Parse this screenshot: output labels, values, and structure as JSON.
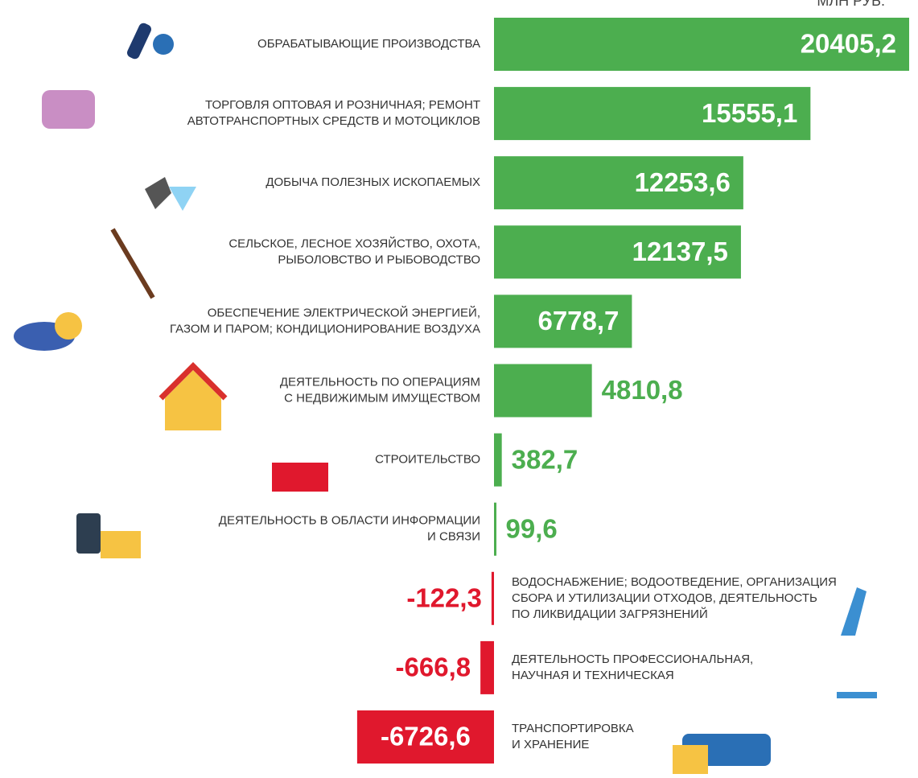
{
  "chart_data": {
    "type": "bar",
    "orientation": "horizontal",
    "unit": "МЛН РУБ.",
    "categories": [
      [
        "ОБРАБАТЫВАЮЩИЕ ПРОИЗВОДСТВА"
      ],
      [
        "ТОРГОВЛЯ ОПТОВАЯ И РОЗНИЧНАЯ; РЕМОНТ",
        "АВТОТРАНСПОРТНЫХ СРЕДСТВ И МОТОЦИКЛОВ"
      ],
      [
        "ДОБЫЧА ПОЛЕЗНЫХ ИСКОПАЕМЫХ"
      ],
      [
        "СЕЛЬСКОЕ, ЛЕСНОЕ ХОЗЯЙСТВО, ОХОТА,",
        "РЫБОЛОВСТВО И РЫБОВОДСТВО"
      ],
      [
        "ОБЕСПЕЧЕНИЕ ЭЛЕКТРИЧЕСКОЙ ЭНЕРГИЕЙ,",
        "ГАЗОМ И ПАРОМ; КОНДИЦИОНИРОВАНИЕ ВОЗДУХА"
      ],
      [
        "ДЕЯТЕЛЬНОСТЬ ПО ОПЕРАЦИЯМ",
        "С НЕДВИЖИМЫМ ИМУЩЕСТВОМ"
      ],
      [
        "СТРОИТЕЛЬСТВО"
      ],
      [
        "ДЕЯТЕЛЬНОСТЬ В ОБЛАСТИ ИНФОРМАЦИИ",
        "И СВЯЗИ"
      ],
      [
        "ВОДОСНАБЖЕНИЕ; ВОДООТВЕДЕНИЕ, ОРГАНИЗАЦИЯ",
        "СБОРА И УТИЛИЗАЦИИ ОТХОДОВ, ДЕЯТЕЛЬНОСТЬ",
        "ПО ЛИКВИДАЦИИ ЗАГРЯЗНЕНИЙ"
      ],
      [
        "ДЕЯТЕЛЬНОСТЬ ПРОФЕССИОНАЛЬНАЯ,",
        "НАУЧНАЯ И ТЕХНИЧЕСКАЯ"
      ],
      [
        "ТРАНСПОРТИРОВКА",
        "И  ХРАНЕНИЕ"
      ]
    ],
    "values": [
      20405.2,
      15555.1,
      12253.6,
      12137.5,
      6778.7,
      4810.8,
      382.7,
      99.6,
      -122.3,
      -666.8,
      -6726.6
    ],
    "value_labels": [
      "20405,2",
      "15555,1",
      "12253,6",
      "12137,5",
      "6778,7",
      "4810,8",
      "382,7",
      "99,6",
      "-122,3",
      "-666,8",
      "-6726,6"
    ],
    "positive_color": "#4cae4f",
    "negative_color": "#e0182d"
  }
}
